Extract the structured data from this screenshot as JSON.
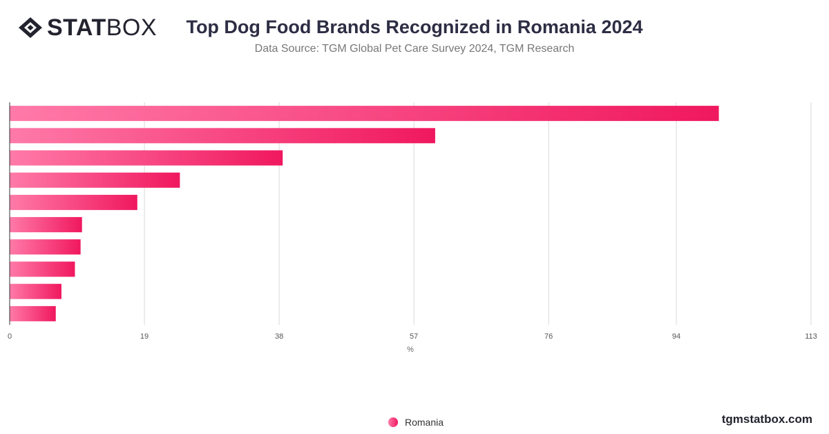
{
  "header": {
    "logo_bold": "STAT",
    "logo_light": "BOX",
    "title": "Top Dog Food Brands Recognized in Romania 2024",
    "subtitle": "Data Source: TGM Global Pet Care Survey 2024, TGM Research"
  },
  "footer": {
    "legend_label": "Romania",
    "site": "tgmstatbox.com"
  },
  "colors": {
    "bar_start": "#ff7aa8",
    "bar_end": "#f0185f",
    "grid": "#d9d9d9"
  },
  "chart_data": {
    "type": "bar",
    "orientation": "horizontal",
    "title": "Top Dog Food Brands Recognized in Romania 2024",
    "subtitle": "Data Source: TGM Global Pet Care Survey 2024, TGM Research",
    "xlabel": "%",
    "xlim": [
      0,
      113
    ],
    "xticks": [
      0,
      19,
      38,
      57,
      76,
      94,
      113
    ],
    "grid": true,
    "legend_position": "bottom",
    "series": [
      {
        "name": "Romania",
        "values": [
          100,
          60,
          38.5,
          24,
          18,
          10.2,
          10,
          9.2,
          7.3,
          6.5
        ]
      }
    ]
  }
}
